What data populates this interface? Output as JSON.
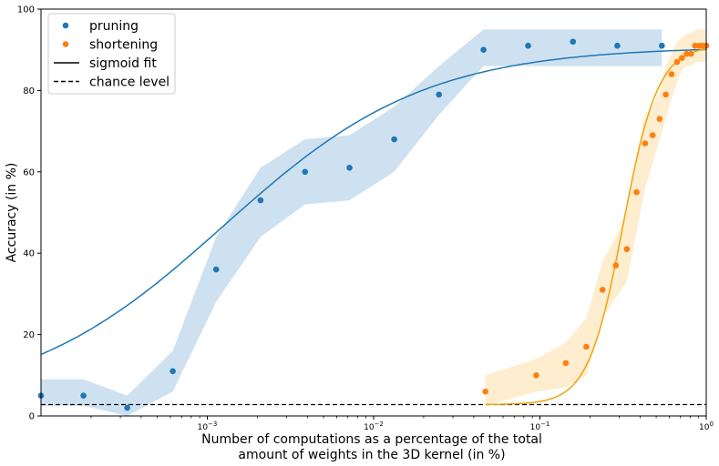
{
  "chart_data": {
    "type": "scatter",
    "xscale": "log",
    "xlim": [
      0.0001,
      1
    ],
    "ylim": [
      0,
      100
    ],
    "xlabel": [
      "Number of computations as a percentage of the total",
      "amount of weights in the 3D kernel (in %)"
    ],
    "ylabel": "Accuracy (in %)",
    "x_ticks": [
      {
        "value": 0.001,
        "base": "10",
        "exp": "−3"
      },
      {
        "value": 0.01,
        "base": "10",
        "exp": "−2"
      },
      {
        "value": 0.1,
        "base": "10",
        "exp": "−1"
      },
      {
        "value": 1,
        "base": "10",
        "exp": "0"
      }
    ],
    "y_ticks": [
      0,
      20,
      40,
      60,
      80,
      100
    ],
    "legend": {
      "placement": "upper-left",
      "entries": [
        {
          "label": "pruning",
          "kind": "marker",
          "color": "#1f77b4"
        },
        {
          "label": "shortening",
          "kind": "marker",
          "color": "#ff7f0e"
        },
        {
          "label": "sigmoid fit",
          "kind": "solid-line",
          "color": "#000000"
        },
        {
          "label": "chance level",
          "kind": "dashed-line",
          "color": "#000000"
        }
      ]
    },
    "chance_level": 2.8,
    "series": [
      {
        "name": "pruning",
        "color": "#1f77b4",
        "band_color": "#a6c8e5",
        "x": [
          0.0001,
          0.00018,
          0.00033,
          0.00062,
          0.00113,
          0.00209,
          0.00387,
          0.00716,
          0.0133,
          0.0247,
          0.0458,
          0.0849,
          0.158,
          0.292,
          0.541
        ],
        "y": [
          5,
          5,
          2,
          11,
          36,
          53,
          60,
          61,
          68,
          79,
          90,
          91,
          92,
          91,
          91
        ],
        "band_low": [
          2.5,
          2.5,
          0,
          6,
          28,
          44,
          52,
          53,
          60,
          74,
          86,
          86,
          86,
          86,
          86
        ],
        "band_high": [
          9,
          9,
          5,
          16,
          44,
          61,
          68,
          69,
          76,
          86,
          95,
          95,
          95,
          95,
          95
        ],
        "fit": {
          "lower": 2.8,
          "upper": 90.8,
          "x50_log10": -2.9,
          "slope": 1.65
        }
      },
      {
        "name": "shortening",
        "color": "#ff7f0e",
        "band_color": "#fde0a8",
        "fit_color": "#f0a30a",
        "x": [
          0.047,
          0.095,
          0.143,
          0.19,
          0.238,
          0.286,
          0.333,
          0.381,
          0.429,
          0.476,
          0.524,
          0.571,
          0.619,
          0.667,
          0.714,
          0.762,
          0.81,
          0.857,
          0.905,
          0.952,
          1.0
        ],
        "y": [
          6,
          10,
          13,
          17,
          31,
          37,
          41,
          55,
          67,
          69,
          73,
          79,
          84,
          87,
          88,
          89,
          89,
          91,
          91,
          91,
          91
        ],
        "band_low": [
          2.5,
          6,
          7,
          10,
          24,
          29,
          33,
          45,
          56,
          62,
          68,
          73,
          78,
          82,
          85,
          86,
          86,
          87,
          87,
          87,
          87
        ],
        "band_high": [
          10,
          14,
          18,
          24,
          38,
          44,
          50,
          64,
          74,
          76,
          80,
          86,
          89,
          92,
          93,
          94,
          94,
          95,
          95,
          95,
          95
        ],
        "fit": {
          "lower": 2.8,
          "upper": 91.0,
          "x50_log10": -0.5,
          "slope": 9.5
        }
      }
    ]
  }
}
